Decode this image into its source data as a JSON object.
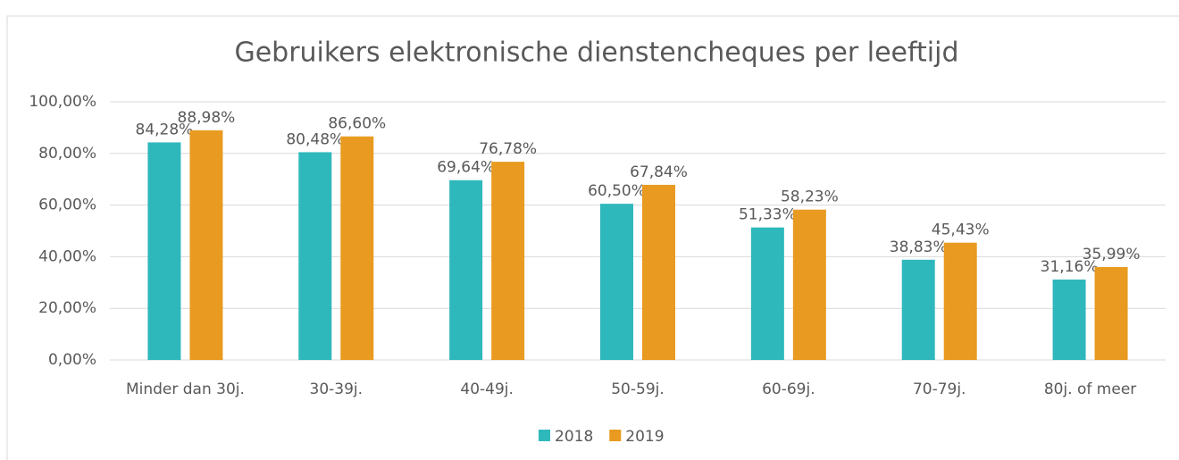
{
  "chart_data": {
    "type": "bar",
    "title": "Gebruikers elektronische dienstencheques per leeftijd",
    "categories": [
      "Minder dan 30j.",
      "30-39j.",
      "40-49j.",
      "50-59j.",
      "60-69j.",
      "70-79j.",
      "80j. of meer"
    ],
    "series": [
      {
        "name": "2018",
        "color": "#2fb8bc",
        "values": [
          84.28,
          80.48,
          69.64,
          60.5,
          51.33,
          38.83,
          31.16
        ],
        "value_labels": [
          "84,28%",
          "80,48%",
          "69,64%",
          "60,50%",
          "51,33%",
          "38,83%",
          "31,16%"
        ]
      },
      {
        "name": "2019",
        "color": "#e89b20",
        "values": [
          88.98,
          86.6,
          76.78,
          67.84,
          58.23,
          45.43,
          35.99
        ],
        "value_labels": [
          "88,98%",
          "86,60%",
          "76,78%",
          "67,84%",
          "58,23%",
          "45,43%",
          "35,99%"
        ]
      }
    ],
    "ylim": [
      0,
      100
    ],
    "yticks": [
      {
        "value": 0,
        "label": "0,00%"
      },
      {
        "value": 20,
        "label": "20,00%"
      },
      {
        "value": 40,
        "label": "40,00%"
      },
      {
        "value": 60,
        "label": "60,00%"
      },
      {
        "value": 80,
        "label": "80,00%"
      },
      {
        "value": 100,
        "label": "100,00%"
      }
    ],
    "grid": true,
    "legend": "bottom"
  }
}
